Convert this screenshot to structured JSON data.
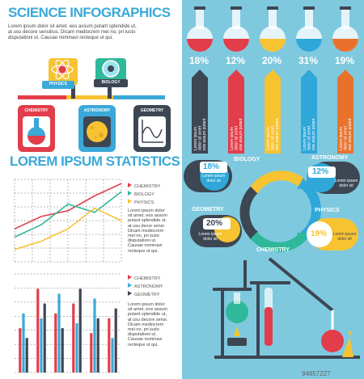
{
  "left": {
    "title1": "SCIENCE INFOGRAPHICS",
    "intro": "Lorem ipsum dolor sit amet, eos assum putant splendide ut,\nat usu decore sensibus. Dicam mediocrem mei no, pri iusto\ndisputationi ut. Causae nominavi recteque ut qui.",
    "tags": {
      "physics": "PHYSICS",
      "biology": "BIOLOGY",
      "chemistry": "CHEMISTRY",
      "astronomy": "ASTRONOMY",
      "geometry": "GEOMETRY"
    },
    "title2": "LOREM IPSUM STATISTICS",
    "line_legend": [
      "CHEMISTRY",
      "BIOLOGY",
      "PHYSICS"
    ],
    "line_text": "Lorem ipsum dolor\nsit amet, eos assum\nputant splendide ut,\nat usu decor sensi.\nDicam mediocrem\nmei no, pri iusto\ndisputationi ut.\nCausae nominavi\nrecteque ut qui.",
    "bar_legend": [
      "CHEMISTRY",
      "ASTRONOMY",
      "GEOMETRY"
    ],
    "bar_text": "Lorem ipsum dolor\nsit amet, eos assum\nputant splendide ut,\nat usu decore sensi.\nDicam mediocrem\nmei no, pri iusto\ndisputationi ut.\nCausae nominavi\nrecteque ut qui."
  },
  "right": {
    "flasks": [
      {
        "pct": "18%",
        "color": "#e23d4a"
      },
      {
        "pct": "12%",
        "color": "#e23d4a"
      },
      {
        "pct": "20%",
        "color": "#f7c331"
      },
      {
        "pct": "31%",
        "color": "#2fa7d9"
      },
      {
        "pct": "19%",
        "color": "#e8722c"
      }
    ],
    "arrow_text": "Lorem ipsum\ndolor sit amet\neos assum putant",
    "cycle": {
      "biology": "BIOLOGY",
      "astronomy": "ASTRONOMY",
      "geometry": "GEOMETRY",
      "physics": "PHYSICS",
      "chemistry": "CHEMISTRY",
      "b1_pct": "18%",
      "b2_pct": "12%",
      "b3_pct": "20%",
      "b4_pct": "19%",
      "bubble_text": "Lorem ipsum\ndolor sit"
    }
  },
  "watermark": "94857227",
  "colors": {
    "blue": "#3aa9d8",
    "red": "#e23d4a",
    "yellow": "#f7c331",
    "green": "#2fb89a",
    "dark": "#3d4653"
  },
  "chart_data": [
    {
      "type": "line",
      "title": "",
      "x": [
        1,
        2,
        3,
        4,
        5
      ],
      "series": [
        {
          "name": "CHEMISTRY",
          "values": [
            40,
            55,
            62,
            80,
            95
          ]
        },
        {
          "name": "BIOLOGY",
          "values": [
            30,
            45,
            70,
            60,
            85
          ]
        },
        {
          "name": "PHYSICS",
          "values": [
            15,
            25,
            40,
            65,
            50
          ]
        }
      ],
      "ylim": [
        0,
        100
      ],
      "grid": true,
      "legend": "right"
    },
    {
      "type": "bar",
      "title": "",
      "categories": [
        "1",
        "2",
        "3",
        "4",
        "5",
        "6"
      ],
      "series": [
        {
          "name": "CHEMISTRY",
          "values": [
            45,
            85,
            60,
            70,
            40,
            55
          ]
        },
        {
          "name": "ASTRONOMY",
          "values": [
            60,
            55,
            80,
            50,
            75,
            35
          ]
        },
        {
          "name": "GEOMETRY",
          "values": [
            35,
            70,
            45,
            85,
            55,
            65
          ]
        }
      ],
      "ylim": [
        0,
        100
      ],
      "grid": true,
      "legend": "right"
    }
  ]
}
